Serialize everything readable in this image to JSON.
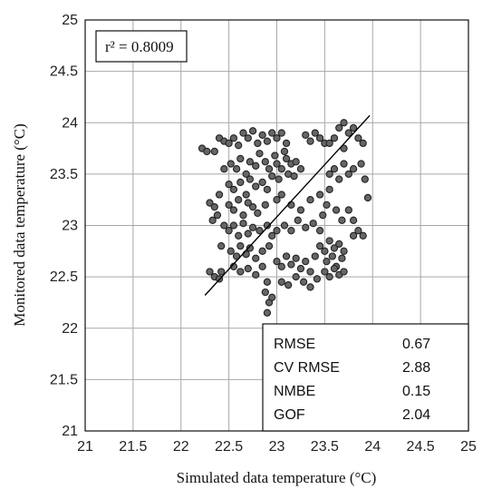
{
  "chart_data": {
    "type": "scatter",
    "title": "",
    "xlabel": "Simulated  data temperature (°C)",
    "ylabel": "Monitored data temperature (°C)",
    "xlim": [
      21,
      25
    ],
    "ylim": [
      21,
      25
    ],
    "xticks": [
      "21",
      "21.5",
      "22",
      "22.5",
      "23",
      "23.5",
      "24",
      "24.5",
      "25"
    ],
    "yticks": [
      "21",
      "21.5",
      "22",
      "22.5",
      "23",
      "23.5",
      "24",
      "24.5",
      "25"
    ],
    "grid": true,
    "r2_label": "r² = 0.8009",
    "fit_line": {
      "x": [
        22.25,
        23.97
      ],
      "y": [
        22.32,
        24.07
      ]
    },
    "stats": [
      {
        "name": "RMSE",
        "value": "0.67"
      },
      {
        "name": "CV RMSE",
        "value": "2.88"
      },
      {
        "name": "NMBE",
        "value": "0.15"
      },
      {
        "name": "GOF",
        "value": "2.04"
      }
    ],
    "points": [
      [
        22.22,
        23.75
      ],
      [
        22.27,
        23.72
      ],
      [
        22.35,
        23.72
      ],
      [
        22.4,
        23.85
      ],
      [
        22.45,
        23.82
      ],
      [
        22.3,
        23.22
      ],
      [
        22.35,
        23.18
      ],
      [
        22.33,
        23.05
      ],
      [
        22.38,
        23.1
      ],
      [
        22.3,
        22.55
      ],
      [
        22.35,
        22.5
      ],
      [
        22.4,
        22.48
      ],
      [
        22.42,
        22.55
      ],
      [
        22.5,
        23.8
      ],
      [
        22.55,
        23.85
      ],
      [
        22.6,
        23.78
      ],
      [
        22.65,
        23.9
      ],
      [
        22.7,
        23.85
      ],
      [
        22.75,
        23.92
      ],
      [
        22.8,
        23.8
      ],
      [
        22.85,
        23.88
      ],
      [
        22.9,
        23.82
      ],
      [
        22.95,
        23.9
      ],
      [
        22.52,
        23.6
      ],
      [
        22.58,
        23.55
      ],
      [
        22.62,
        23.65
      ],
      [
        22.68,
        23.5
      ],
      [
        22.72,
        23.62
      ],
      [
        22.78,
        23.58
      ],
      [
        22.82,
        23.7
      ],
      [
        22.88,
        23.62
      ],
      [
        22.92,
        23.55
      ],
      [
        22.98,
        23.68
      ],
      [
        22.5,
        23.4
      ],
      [
        22.55,
        23.35
      ],
      [
        22.62,
        23.42
      ],
      [
        22.68,
        23.3
      ],
      [
        22.72,
        23.45
      ],
      [
        22.78,
        23.38
      ],
      [
        22.85,
        23.42
      ],
      [
        22.9,
        23.35
      ],
      [
        22.95,
        23.48
      ],
      [
        22.5,
        23.2
      ],
      [
        22.55,
        23.15
      ],
      [
        22.6,
        23.25
      ],
      [
        22.65,
        23.1
      ],
      [
        22.7,
        23.22
      ],
      [
        22.75,
        23.18
      ],
      [
        22.8,
        23.12
      ],
      [
        22.88,
        23.2
      ],
      [
        22.5,
        22.95
      ],
      [
        22.55,
        23.0
      ],
      [
        22.6,
        22.9
      ],
      [
        22.65,
        23.02
      ],
      [
        22.7,
        22.92
      ],
      [
        22.75,
        22.98
      ],
      [
        22.82,
        22.95
      ],
      [
        22.9,
        23.0
      ],
      [
        22.95,
        22.9
      ],
      [
        22.52,
        22.75
      ],
      [
        22.58,
        22.7
      ],
      [
        22.62,
        22.8
      ],
      [
        22.68,
        22.72
      ],
      [
        22.72,
        22.78
      ],
      [
        22.78,
        22.68
      ],
      [
        22.85,
        22.75
      ],
      [
        22.92,
        22.8
      ],
      [
        22.55,
        22.6
      ],
      [
        22.62,
        22.55
      ],
      [
        22.7,
        22.58
      ],
      [
        22.78,
        22.52
      ],
      [
        22.85,
        22.6
      ],
      [
        22.9,
        22.45
      ],
      [
        22.88,
        22.35
      ],
      [
        22.92,
        22.25
      ],
      [
        22.9,
        22.15
      ],
      [
        22.95,
        22.3
      ],
      [
        23.0,
        23.6
      ],
      [
        23.05,
        23.55
      ],
      [
        23.1,
        23.65
      ],
      [
        23.15,
        23.6
      ],
      [
        23.2,
        23.62
      ],
      [
        23.25,
        23.55
      ],
      [
        23.08,
        23.72
      ],
      [
        23.12,
        23.5
      ],
      [
        23.02,
        23.45
      ],
      [
        23.18,
        23.48
      ],
      [
        23.0,
        23.85
      ],
      [
        23.05,
        23.9
      ],
      [
        23.1,
        23.8
      ],
      [
        23.3,
        23.88
      ],
      [
        23.35,
        23.82
      ],
      [
        23.4,
        23.9
      ],
      [
        23.45,
        23.85
      ],
      [
        23.5,
        23.8
      ],
      [
        23.0,
        23.25
      ],
      [
        23.05,
        23.3
      ],
      [
        23.15,
        23.2
      ],
      [
        23.25,
        23.15
      ],
      [
        23.35,
        23.25
      ],
      [
        23.45,
        23.3
      ],
      [
        23.55,
        23.35
      ],
      [
        23.0,
        22.95
      ],
      [
        23.08,
        23.0
      ],
      [
        23.15,
        22.95
      ],
      [
        23.22,
        23.05
      ],
      [
        23.3,
        22.98
      ],
      [
        23.38,
        23.02
      ],
      [
        23.45,
        22.95
      ],
      [
        23.0,
        22.65
      ],
      [
        23.05,
        22.6
      ],
      [
        23.1,
        22.7
      ],
      [
        23.15,
        22.62
      ],
      [
        23.2,
        22.68
      ],
      [
        23.25,
        22.58
      ],
      [
        23.3,
        22.65
      ],
      [
        23.35,
        22.55
      ],
      [
        23.4,
        22.7
      ],
      [
        23.05,
        22.45
      ],
      [
        23.12,
        22.42
      ],
      [
        23.2,
        22.5
      ],
      [
        23.28,
        22.45
      ],
      [
        23.35,
        22.4
      ],
      [
        23.42,
        22.48
      ],
      [
        23.45,
        22.8
      ],
      [
        23.5,
        22.75
      ],
      [
        23.55,
        22.85
      ],
      [
        23.6,
        22.78
      ],
      [
        23.65,
        22.82
      ],
      [
        23.7,
        22.75
      ],
      [
        23.52,
        22.65
      ],
      [
        23.58,
        22.7
      ],
      [
        23.62,
        22.6
      ],
      [
        23.68,
        22.68
      ],
      [
        23.5,
        22.55
      ],
      [
        23.55,
        22.5
      ],
      [
        23.6,
        22.58
      ],
      [
        23.65,
        22.52
      ],
      [
        23.7,
        22.55
      ],
      [
        23.55,
        23.5
      ],
      [
        23.6,
        23.55
      ],
      [
        23.65,
        23.45
      ],
      [
        23.7,
        23.6
      ],
      [
        23.75,
        23.5
      ],
      [
        23.8,
        23.55
      ],
      [
        23.55,
        23.8
      ],
      [
        23.6,
        23.85
      ],
      [
        23.65,
        23.95
      ],
      [
        23.7,
        24.0
      ],
      [
        23.75,
        23.9
      ],
      [
        23.8,
        23.95
      ],
      [
        23.85,
        23.85
      ],
      [
        23.9,
        23.8
      ],
      [
        23.7,
        23.75
      ],
      [
        23.75,
        23.15
      ],
      [
        23.8,
        23.05
      ],
      [
        23.85,
        22.95
      ],
      [
        23.9,
        22.9
      ],
      [
        23.8,
        22.9
      ],
      [
        23.88,
        23.6
      ],
      [
        23.92,
        23.45
      ],
      [
        23.95,
        23.27
      ],
      [
        22.45,
        23.0
      ],
      [
        22.42,
        22.8
      ],
      [
        22.4,
        23.3
      ],
      [
        22.45,
        23.55
      ],
      [
        23.48,
        23.1
      ],
      [
        23.52,
        23.2
      ],
      [
        23.62,
        23.15
      ],
      [
        23.68,
        23.05
      ]
    ]
  }
}
